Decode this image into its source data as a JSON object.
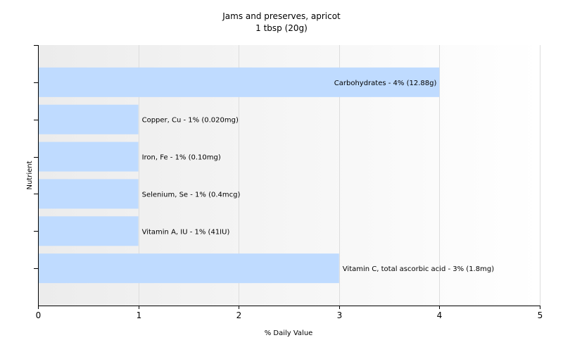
{
  "chart_data": {
    "type": "bar",
    "orientation": "horizontal",
    "title": "Jams and preserves, apricot",
    "subtitle": "1 tbsp (20g)",
    "xlabel": "% Daily Value",
    "ylabel": "Nutrient",
    "xlim": [
      0,
      5
    ],
    "xticks": [
      "0",
      "1",
      "2",
      "3",
      "4",
      "5"
    ],
    "grid": "vertical",
    "legend": "none",
    "bar_color": "#bfdbff",
    "categories": [
      "Carbohydrates",
      "Copper, Cu",
      "Iron, Fe",
      "Selenium, Se",
      "Vitamin A, IU",
      "Vitamin C, total ascorbic acid"
    ],
    "values": [
      4,
      1,
      1,
      1,
      1,
      3
    ],
    "labels": [
      "Carbohydrates - 4% (12.88g)",
      "Copper, Cu - 1% (0.020mg)",
      "Iron, Fe - 1% (0.10mg)",
      "Selenium, Se - 1% (0.4mcg)",
      "Vitamin A, IU - 1% (41IU)",
      "Vitamin C, total ascorbic acid - 3% (1.8mg)"
    ]
  }
}
